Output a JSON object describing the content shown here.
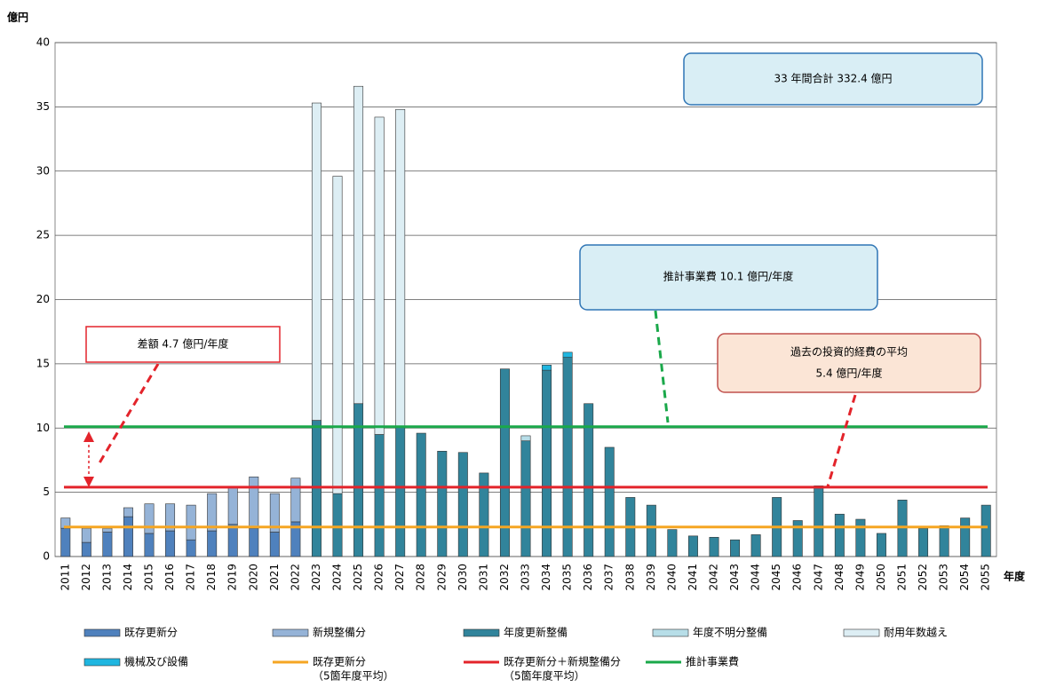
{
  "chart_data": {
    "type": "bar",
    "stacked": true,
    "y_label": "億円",
    "x_label": "年度",
    "categories": [
      "2011",
      "2012",
      "2013",
      "2014",
      "2015",
      "2016",
      "2017",
      "2018",
      "2019",
      "2020",
      "2021",
      "2022",
      "2023",
      "2024",
      "2025",
      "2026",
      "2027",
      "2028",
      "2029",
      "2030",
      "2031",
      "2032",
      "2033",
      "2034",
      "2035",
      "2036",
      "2037",
      "2038",
      "2039",
      "2040",
      "2041",
      "2042",
      "2043",
      "2044",
      "2045",
      "2046",
      "2047",
      "2048",
      "2049",
      "2050",
      "2051",
      "2052",
      "2053",
      "2054",
      "2055"
    ],
    "ylim": [
      0,
      40
    ],
    "yticks": [
      0,
      5,
      10,
      15,
      20,
      25,
      30,
      35,
      40
    ],
    "grid": true,
    "series": [
      {
        "name": "既存更新分",
        "color": "#4f81bd",
        "values": [
          2.2,
          1.1,
          1.9,
          3.1,
          1.8,
          2.0,
          1.3,
          2.0,
          2.5,
          2.2,
          1.9,
          2.7,
          null,
          null,
          null,
          null,
          null,
          null,
          null,
          null,
          null,
          null,
          null,
          null,
          null,
          null,
          null,
          null,
          null,
          null,
          null,
          null,
          null,
          null,
          null,
          null,
          null,
          null,
          null,
          null,
          null,
          null,
          null,
          null,
          null
        ]
      },
      {
        "name": "新規整備分",
        "color": "#95b3d7",
        "values": [
          0.8,
          1.1,
          0.3,
          0.7,
          2.3,
          2.1,
          2.7,
          2.9,
          2.9,
          4.0,
          3.0,
          3.4,
          null,
          null,
          null,
          null,
          null,
          null,
          null,
          null,
          null,
          null,
          null,
          null,
          null,
          null,
          null,
          null,
          null,
          null,
          null,
          null,
          null,
          null,
          null,
          null,
          null,
          null,
          null,
          null,
          null,
          null,
          null,
          null,
          null
        ]
      },
      {
        "name": "年度更新整備",
        "color": "#31849b",
        "values": [
          null,
          null,
          null,
          null,
          null,
          null,
          null,
          null,
          null,
          null,
          null,
          null,
          10.6,
          4.9,
          11.9,
          9.5,
          10.1,
          9.6,
          8.2,
          8.1,
          6.5,
          14.6,
          9.0,
          14.5,
          15.5,
          11.9,
          8.5,
          4.6,
          4.0,
          2.1,
          1.6,
          1.5,
          1.3,
          1.7,
          4.6,
          2.8,
          5.5,
          3.3,
          2.9,
          1.8,
          4.4,
          2.2,
          2.4,
          3.0,
          4.0
        ]
      },
      {
        "name": "年度不明分整備",
        "color": "#b7dee8",
        "values": [
          null,
          null,
          null,
          null,
          null,
          null,
          null,
          null,
          null,
          null,
          null,
          null,
          null,
          null,
          null,
          null,
          null,
          null,
          null,
          null,
          null,
          null,
          0.4,
          null,
          null,
          null,
          null,
          null,
          null,
          null,
          null,
          null,
          null,
          null,
          null,
          null,
          null,
          null,
          null,
          null,
          null,
          null,
          null,
          null,
          null
        ]
      },
      {
        "name": "耐用年数越え",
        "color": "#ddeef4",
        "values": [
          null,
          null,
          null,
          null,
          null,
          null,
          null,
          null,
          null,
          null,
          null,
          null,
          24.7,
          24.7,
          24.7,
          24.7,
          24.7,
          null,
          null,
          null,
          null,
          null,
          null,
          null,
          null,
          null,
          null,
          null,
          null,
          null,
          null,
          null,
          null,
          null,
          null,
          null,
          null,
          null,
          null,
          null,
          null,
          null,
          null,
          null,
          null
        ]
      },
      {
        "name": "機械及び設備",
        "color": "#1fb6e0",
        "values": [
          null,
          null,
          null,
          null,
          null,
          null,
          null,
          null,
          null,
          null,
          null,
          null,
          null,
          null,
          null,
          null,
          null,
          null,
          null,
          null,
          null,
          null,
          null,
          0.4,
          0.4,
          null,
          null,
          null,
          null,
          null,
          null,
          null,
          null,
          null,
          null,
          null,
          null,
          null,
          null,
          null,
          null,
          null,
          null,
          null,
          null
        ]
      }
    ],
    "lines": [
      {
        "name": "既存更新分",
        "note": "（5箇年度平均）",
        "color": "#f5a623",
        "value": 2.3
      },
      {
        "name": "既存更新分＋新規整備分",
        "note": "（5箇年度平均）",
        "color": "#e3242b",
        "value": 5.4
      },
      {
        "name": "推計事業費",
        "color": "#1aa84a",
        "value": 10.1
      }
    ],
    "annotations": [
      "33 年間合計 332.4 億円",
      "推計事業費 10.1 億円/年度",
      "差額 4.7 億円/年度",
      "過去の投資的経費の平均",
      "5.4 億円/年度"
    ]
  }
}
